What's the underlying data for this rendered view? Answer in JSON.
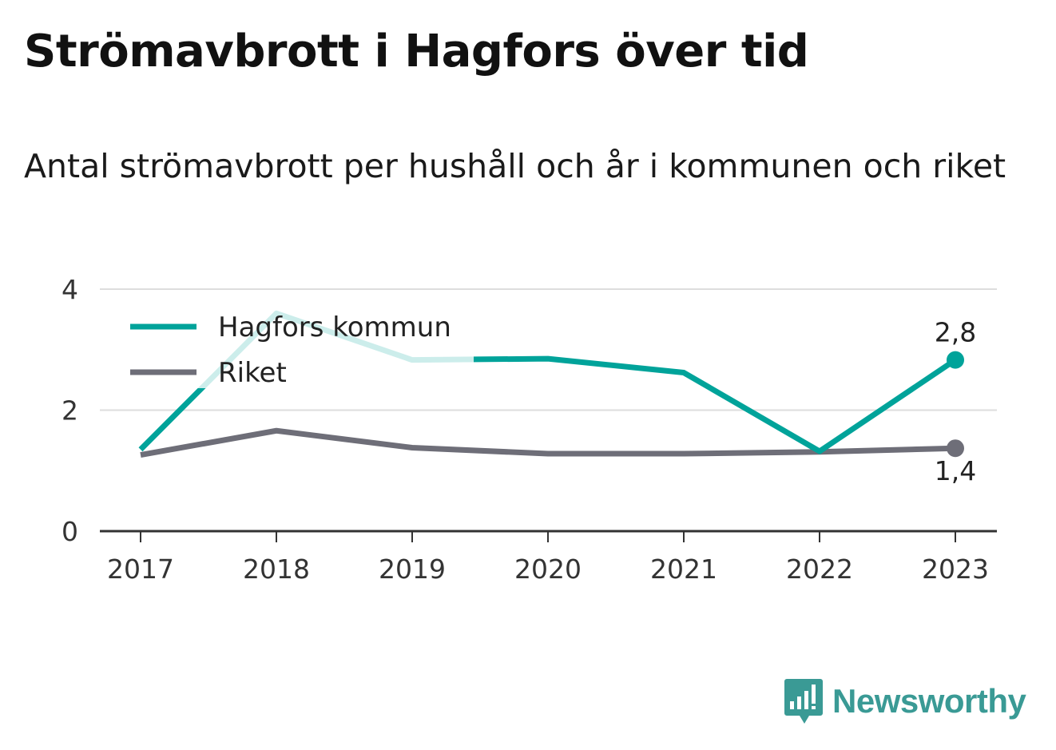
{
  "title": "Strömavbrott i Hagfors över tid",
  "subtitle": "Antal strömavbrott per hushåll och år i kommunen och riket",
  "brand": "Newsworthy",
  "colors": {
    "hagfors": "#00a39a",
    "hagfors_faded": "#cdeceb",
    "riket": "#6e6e78",
    "grid": "#dddddd",
    "axis": "#333333",
    "brand": "#3a9a95"
  },
  "chart_data": {
    "type": "line",
    "categories": [
      "2017",
      "2018",
      "2019",
      "2020",
      "2021",
      "2022",
      "2023"
    ],
    "ylim": [
      0,
      4
    ],
    "yticks": [
      "0",
      "2",
      "4"
    ],
    "grid": true,
    "legend_position": "top-left",
    "series": [
      {
        "name": "Hagfors kommun",
        "values": [
          1.35,
          3.6,
          2.83,
          2.85,
          2.62,
          1.32,
          2.83
        ],
        "end_label": "2,8"
      },
      {
        "name": "Riket",
        "values": [
          1.26,
          1.66,
          1.38,
          1.28,
          1.28,
          1.31,
          1.37
        ],
        "end_label": "1,4"
      }
    ]
  }
}
